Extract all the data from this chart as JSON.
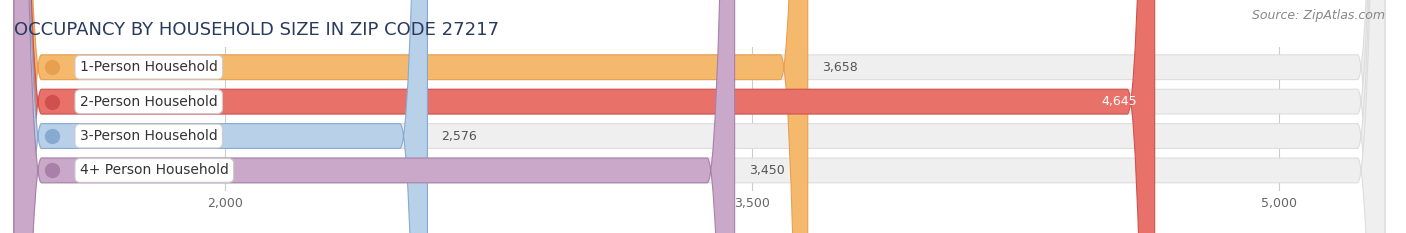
{
  "title": "OCCUPANCY BY HOUSEHOLD SIZE IN ZIP CODE 27217",
  "source": "Source: ZipAtlas.com",
  "categories": [
    "1-Person Household",
    "2-Person Household",
    "3-Person Household",
    "4+ Person Household"
  ],
  "values": [
    3658,
    4645,
    2576,
    3450
  ],
  "bar_colors": [
    "#f5b96e",
    "#e8726a",
    "#b8d0e8",
    "#c9a8c9"
  ],
  "bar_edge_colors": [
    "#e8a050",
    "#d05050",
    "#88aad0",
    "#a880a8"
  ],
  "label_dot_colors": [
    "#e8a050",
    "#d05050",
    "#88aad0",
    "#a880a8"
  ],
  "xlim_min": 1400,
  "xlim_max": 5300,
  "xticks": [
    2000,
    3500,
    5000
  ],
  "background_color": "#ffffff",
  "bar_bg_color": "#efefef",
  "bar_bg_edge_color": "#dddddd",
  "title_fontsize": 13,
  "source_fontsize": 9,
  "bar_label_fontsize": 9,
  "category_fontsize": 10,
  "tick_fontsize": 9,
  "bar_height": 0.72,
  "value_label_color_inside": "#ffffff",
  "value_label_color_outside": "#555555"
}
